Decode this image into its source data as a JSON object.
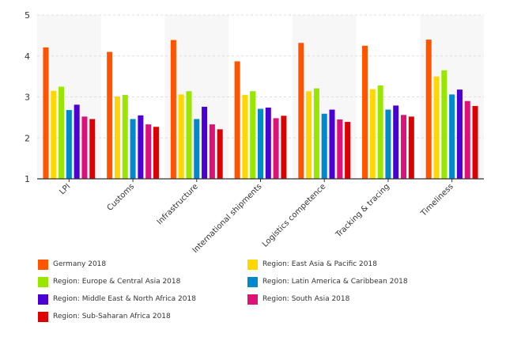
{
  "chart_data": {
    "type": "bar",
    "categories": [
      "LPI",
      "Customs",
      "Infrastructure",
      "International shipments",
      "Logistics competence",
      "Tracking & tracing",
      "Timeliness"
    ],
    "ylim": [
      1,
      5
    ],
    "yticks": [
      1,
      2,
      3,
      4,
      5
    ],
    "grid": true,
    "legend_placement": "bottom",
    "series": [
      {
        "name": "Germany 2018",
        "color": "#ff5500",
        "values": [
          4.21,
          4.1,
          4.39,
          3.87,
          4.32,
          4.25,
          4.4
        ]
      },
      {
        "name": "Region: East Asia & Pacific 2018",
        "color": "#ffd700",
        "values": [
          3.15,
          3.01,
          3.06,
          3.05,
          3.14,
          3.19,
          3.5
        ]
      },
      {
        "name": "Region: Europe & Central Asia 2018",
        "color": "#99e600",
        "values": [
          3.25,
          3.05,
          3.14,
          3.14,
          3.21,
          3.28,
          3.65
        ]
      },
      {
        "name": "Region: Latin America & Caribbean 2018",
        "color": "#0088cc",
        "values": [
          2.68,
          2.46,
          2.46,
          2.71,
          2.59,
          2.69,
          3.06
        ]
      },
      {
        "name": "Region: Middle East & North Africa 2018",
        "color": "#4a00d4",
        "values": [
          2.81,
          2.55,
          2.76,
          2.74,
          2.69,
          2.79,
          3.18
        ]
      },
      {
        "name": "Region: South Asia 2018",
        "color": "#dd1177",
        "values": [
          2.52,
          2.33,
          2.33,
          2.48,
          2.45,
          2.56,
          2.9
        ]
      },
      {
        "name": "Region: Sub-Saharan Africa 2018",
        "color": "#dd0000",
        "values": [
          2.46,
          2.27,
          2.21,
          2.54,
          2.39,
          2.52,
          2.78
        ]
      }
    ]
  }
}
